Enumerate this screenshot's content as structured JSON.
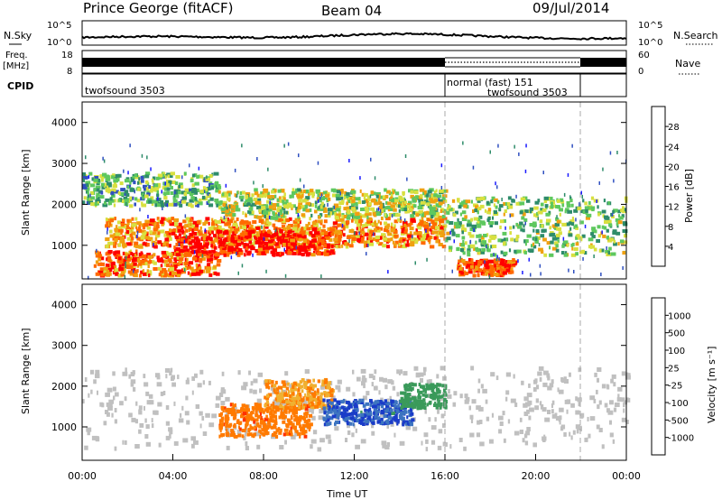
{
  "header": {
    "station": "Prince George (fitACF)",
    "beam": "Beam 04",
    "date": "09/Jul/2014"
  },
  "noise_panel": {
    "left_label": "N.Sky",
    "right_label": "N.Search",
    "left_ticks": [
      "10^5",
      "10^0"
    ],
    "right_ticks": [
      "10^5",
      "10^0"
    ]
  },
  "freq_panel": {
    "left_label_1": "Freq.",
    "left_label_2": "[MHz]",
    "right_label": "Nave",
    "left_ticks": [
      "18",
      "8"
    ],
    "right_ticks": [
      "60",
      "0"
    ]
  },
  "cpid_panel": {
    "label": "CPID",
    "entries": [
      {
        "name": "twofsound 3503",
        "start_hour": 0,
        "end_hour": 16
      },
      {
        "name": "normal (fast) 151",
        "start_hour": 16,
        "end_hour": 22
      },
      {
        "name": "twofsound 3503",
        "start_hour": 22,
        "end_hour": 24
      }
    ]
  },
  "power_panel": {
    "ylabel": "Slant Range [km]",
    "yticks": [
      "1000",
      "2000",
      "3000",
      "4000"
    ],
    "cbar_label": "Power [dB]",
    "cbar_ticks": [
      "4",
      "8",
      "12",
      "16",
      "20",
      "24",
      "28"
    ],
    "cbar_colors": [
      "#1a1aff",
      "#3050c0",
      "#2e8c6a",
      "#5ec85e",
      "#d8e040",
      "#f0a010",
      "#ff6a00",
      "#ff0000"
    ]
  },
  "velocity_panel": {
    "ylabel": "Slant Range [km]",
    "yticks": [
      "1000",
      "2000",
      "3000",
      "4000"
    ],
    "cbar_label": "Velocity [m s⁻¹]",
    "cbar_ticks": [
      "1000",
      "500",
      "100",
      "25",
      "-25",
      "-100",
      "-500",
      "-1000"
    ],
    "cbar_colors": [
      "#1a3cc8",
      "#3d74c0",
      "#3a9a5a",
      "#6ad040",
      "#bdbdbd",
      "#f0b030",
      "#ff7a00",
      "#ff3000",
      "#ff0000"
    ],
    "ground_scatter_color": "#c0c0c0"
  },
  "time_axis": {
    "xlabel": "Time UT",
    "ticks": [
      "00:00",
      "04:00",
      "08:00",
      "12:00",
      "16:00",
      "20:00",
      "00:00"
    ]
  },
  "chart_data": {
    "type": "heatmap",
    "title": "Prince George (fitACF)",
    "xlabel": "Time UT",
    "ylabel": "Slant Range [km]",
    "xlim": [
      0,
      24
    ],
    "ylim": [
      180,
      4500
    ],
    "mode_changes_hours": [
      16,
      22
    ],
    "power_db_range": [
      0,
      30
    ],
    "velocity_range": [
      -1000,
      1000
    ],
    "power_bands": [
      {
        "t0": 0.5,
        "t1": 6,
        "r0": 300,
        "r1": 900,
        "power": 24
      },
      {
        "t0": 1,
        "t1": 16,
        "r0": 1000,
        "r1": 1700,
        "power": 22
      },
      {
        "t0": 4,
        "t1": 11,
        "r0": 800,
        "r1": 1400,
        "power": 28
      },
      {
        "t0": 0,
        "t1": 6,
        "r0": 2000,
        "r1": 2800,
        "power": 12
      },
      {
        "t0": 6,
        "t1": 16,
        "r0": 1700,
        "r1": 2400,
        "power": 16
      },
      {
        "t0": 16,
        "t1": 24,
        "r0": 800,
        "r1": 2200,
        "power": 14
      },
      {
        "t0": 16.5,
        "t1": 19,
        "r0": 300,
        "r1": 700,
        "power": 26
      }
    ],
    "velocity_bands": [
      {
        "t0": 6,
        "t1": 10,
        "r0": 800,
        "r1": 1600,
        "velocity": -200
      },
      {
        "t0": 8,
        "t1": 11,
        "r0": 1500,
        "r1": 2200,
        "velocity": -60
      },
      {
        "t0": 10.5,
        "t1": 14.5,
        "r0": 1100,
        "r1": 1700,
        "velocity": 700
      },
      {
        "t0": 14,
        "t1": 16,
        "r0": 1500,
        "r1": 2100,
        "velocity": 150
      }
    ]
  }
}
